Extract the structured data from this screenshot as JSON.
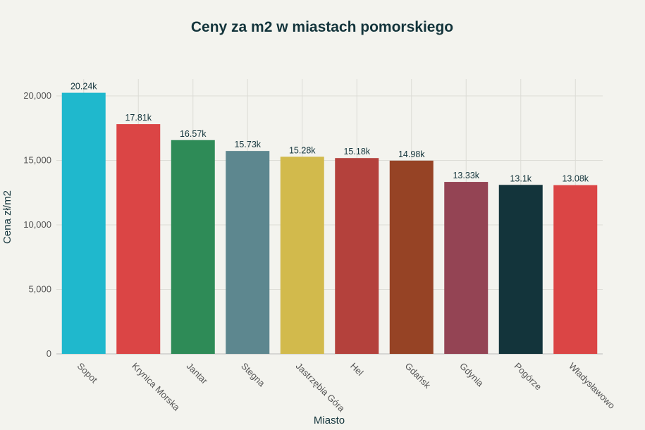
{
  "chart_data": {
    "type": "bar",
    "title": "Ceny za m2 w miastach pomorskiego",
    "xlabel": "Miasto",
    "ylabel": "Cena zł/m2",
    "categories": [
      "Sopot",
      "Krynica Morska",
      "Jantar",
      "Stegna",
      "Jastrzębia Góra",
      "Hel",
      "Gdańsk",
      "Gdynia",
      "Pogórze",
      "Władysławowo"
    ],
    "values": [
      20240,
      17810,
      16570,
      15730,
      15280,
      15180,
      14980,
      13330,
      13100,
      13080
    ],
    "data_labels": [
      "20.24k",
      "17.81k",
      "16.57k",
      "15.73k",
      "15.28k",
      "15.18k",
      "14.98k",
      "13.33k",
      "13.1k",
      "13.08k"
    ],
    "colors": [
      "#1fb8cd",
      "#db4545",
      "#2e8b57",
      "#5d878f",
      "#d2ba4c",
      "#b4413c",
      "#964325",
      "#944454",
      "#13343b",
      "#db4545"
    ],
    "ylim": [
      0,
      21000
    ],
    "yticks": [
      0,
      5000,
      10000,
      15000,
      20000
    ],
    "ytick_labels": [
      "0",
      "5,000",
      "10,000",
      "15,000",
      "20,000"
    ],
    "grid": true,
    "legend": "none"
  }
}
